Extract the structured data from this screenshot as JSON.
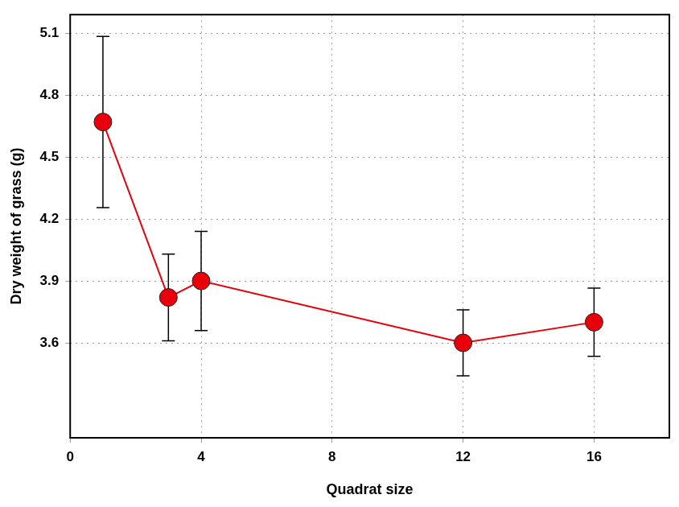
{
  "chart_data": {
    "type": "line",
    "x_label": "Quadrat size",
    "y_label": "Dry weight of grass (g)",
    "x": [
      1,
      3,
      4,
      12,
      16
    ],
    "values": [
      4.67,
      3.82,
      3.9,
      3.6,
      3.7
    ],
    "errors": [
      0.415,
      0.21,
      0.24,
      0.16,
      0.165
    ],
    "color": "#e8000b",
    "marker": "circle",
    "line_style": "solid",
    "xlim": [
      0,
      18.3
    ],
    "xticks": [
      0,
      4,
      8,
      12,
      16
    ],
    "ylim": [
      3.14,
      5.19
    ],
    "yticks": [
      3.6,
      3.9,
      4.2,
      4.5,
      4.8,
      5.1
    ],
    "grid": true
  }
}
